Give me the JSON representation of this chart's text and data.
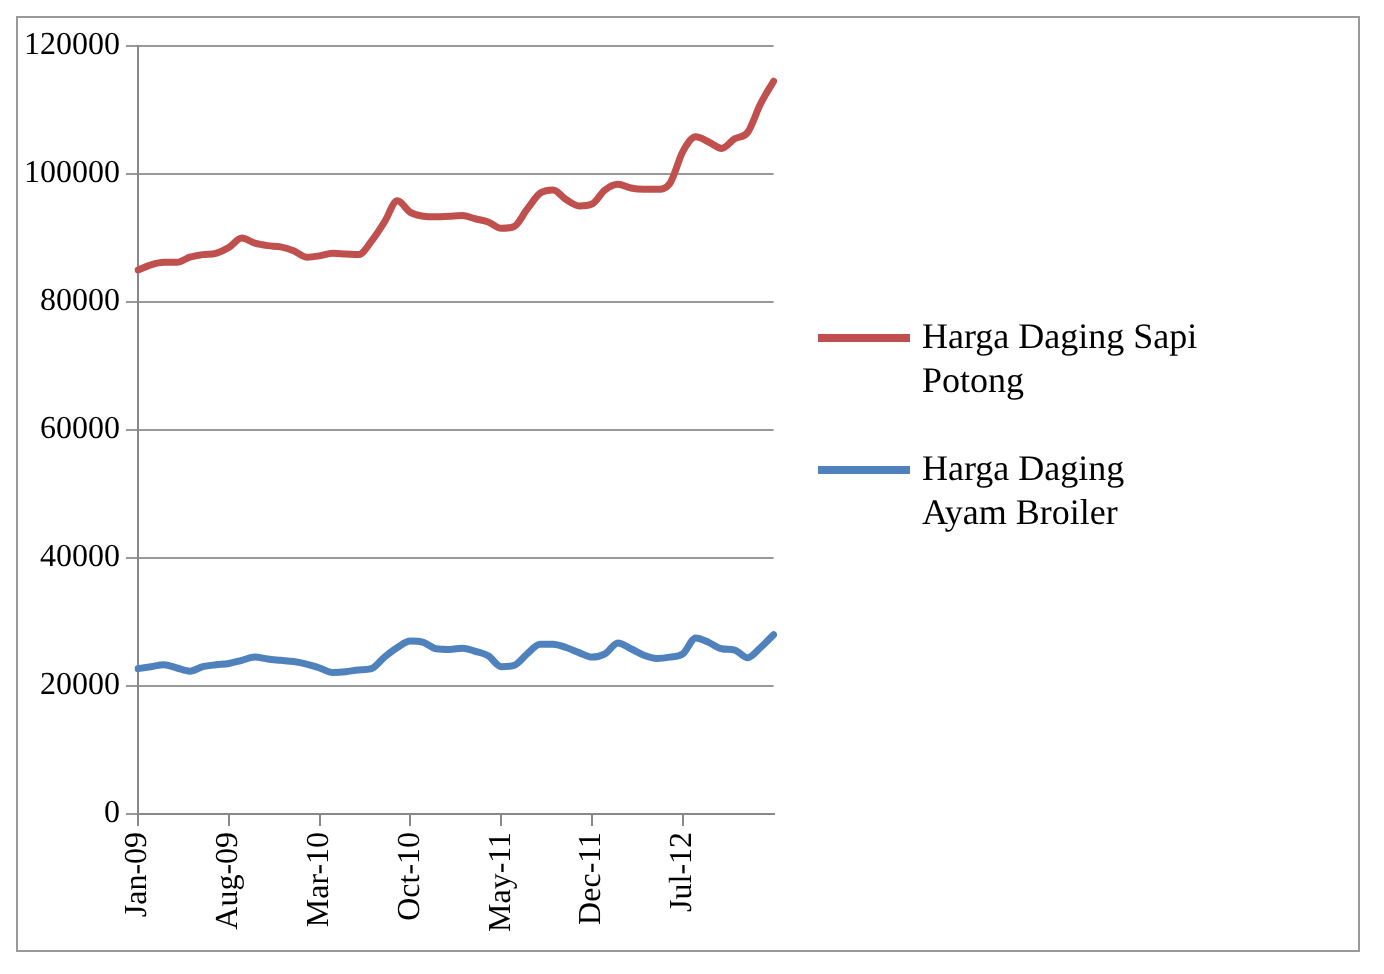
{
  "chart_data": {
    "type": "line",
    "categories": [
      "Jan-09",
      null,
      null,
      null,
      null,
      null,
      null,
      "Aug-09",
      null,
      null,
      null,
      null,
      null,
      null,
      "Mar-10",
      null,
      null,
      null,
      null,
      null,
      null,
      "Oct-10",
      null,
      null,
      null,
      null,
      null,
      null,
      "May-11",
      null,
      null,
      null,
      null,
      null,
      null,
      "Dec-11",
      null,
      null,
      null,
      null,
      null,
      null,
      "Jul-12",
      null,
      null,
      null,
      null,
      null,
      null,
      null
    ],
    "series": [
      {
        "name": "Harga Daging Sapi Potong",
        "color": "#c0504d",
        "values": [
          85000,
          85800,
          86200,
          86200,
          87000,
          87400,
          87600,
          88500,
          90000,
          89200,
          88800,
          88600,
          88000,
          87000,
          87200,
          87600,
          87500,
          87400,
          89500,
          92500,
          95800,
          94000,
          93400,
          93300,
          93400,
          93500,
          93000,
          92500,
          91500,
          91800,
          94500,
          97000,
          97500,
          96000,
          95000,
          95300,
          97500,
          98400,
          97800,
          97600,
          97600,
          98500,
          103500,
          105800,
          105000,
          104000,
          105500,
          106500,
          111000,
          114500
        ]
      },
      {
        "name": "Harga Daging Ayam Broiler",
        "color": "#4f81bd",
        "values": [
          22700,
          23000,
          23300,
          22800,
          22300,
          23000,
          23300,
          23500,
          24000,
          24500,
          24200,
          24000,
          23800,
          23400,
          22800,
          22100,
          22200,
          22500,
          22700,
          24500,
          26000,
          27000,
          26800,
          25800,
          25700,
          25900,
          25400,
          24700,
          23000,
          23200,
          25000,
          26500,
          26500,
          26000,
          25200,
          24500,
          25000,
          26700,
          25800,
          24800,
          24300,
          24500,
          25000,
          27500,
          26800,
          25800,
          25600,
          24400,
          26000,
          28000
        ]
      }
    ],
    "ylim": [
      0,
      120000
    ],
    "yticks": [
      0,
      20000,
      40000,
      60000,
      80000,
      100000,
      120000
    ],
    "grid": "y",
    "legend": "right",
    "marker": "none",
    "line_style": "solid"
  }
}
